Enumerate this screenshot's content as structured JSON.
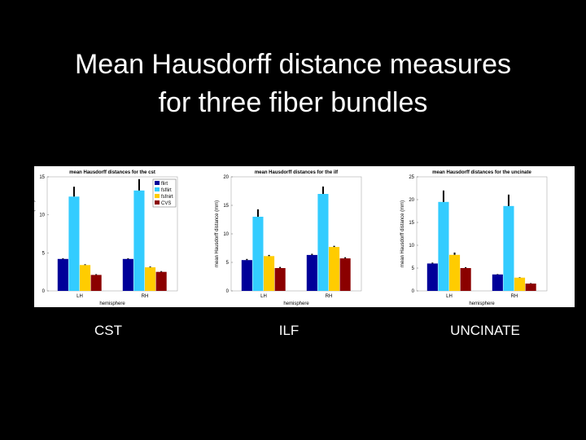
{
  "slide_title": [
    "Mean Hausdorff distance measures",
    "for three fiber bundles"
  ],
  "captions": [
    "CST",
    "ILF",
    "UNCINATE"
  ],
  "chart_data": [
    {
      "type": "bar",
      "title": "mean Hausdorff distances for the cst",
      "ylabel": "mean Hausdorff distance (mm)",
      "xlabel": "hemisphere",
      "categories": [
        "LH",
        "RH"
      ],
      "ylim": [
        0,
        15
      ],
      "yticks": [
        0,
        5,
        10,
        15
      ],
      "legend": "upper right",
      "series": [
        {
          "name": "flirt",
          "color": "#000099",
          "values": [
            4.2,
            4.2
          ],
          "errors": [
            0.1,
            0.1
          ]
        },
        {
          "name": "fsflirt",
          "color": "#33ccff",
          "values": [
            12.4,
            13.2
          ],
          "errors": [
            1.3,
            1.5
          ]
        },
        {
          "name": "fsfnirt",
          "color": "#ffcc00",
          "values": [
            3.4,
            3.1
          ],
          "errors": [
            0.1,
            0.1
          ]
        },
        {
          "name": "CVS",
          "color": "#8b0000",
          "values": [
            2.1,
            2.5
          ],
          "errors": [
            0.1,
            0.1
          ]
        }
      ]
    },
    {
      "type": "bar",
      "title": "mean Hausdorff distances for the ilf",
      "ylabel": "mean Hausdorff distance (mm)",
      "xlabel": "hemisphere",
      "categories": [
        "LH",
        "RH"
      ],
      "ylim": [
        0,
        20
      ],
      "yticks": [
        0,
        5,
        10,
        15,
        20
      ],
      "series": [
        {
          "color": "#000099",
          "values": [
            5.4,
            6.3
          ],
          "errors": [
            0.2,
            0.2
          ]
        },
        {
          "color": "#33ccff",
          "values": [
            13,
            17
          ],
          "errors": [
            1.3,
            1.3
          ]
        },
        {
          "color": "#ffcc00",
          "values": [
            6.1,
            7.7
          ],
          "errors": [
            0.2,
            0.2
          ]
        },
        {
          "color": "#8b0000",
          "values": [
            4,
            5.7
          ],
          "errors": [
            0.2,
            0.2
          ]
        }
      ]
    },
    {
      "type": "bar",
      "title": "mean Hausdorff distances for the uncinate",
      "ylabel": "mean Hausdorff distance (mm)",
      "xlabel": "hemisphere",
      "categories": [
        "LH",
        "RH"
      ],
      "ylim": [
        0,
        25
      ],
      "yticks": [
        0,
        5,
        10,
        15,
        20,
        25
      ],
      "series": [
        {
          "color": "#000099",
          "values": [
            6,
            3.6
          ],
          "errors": [
            0.2,
            0.1
          ]
        },
        {
          "color": "#33ccff",
          "values": [
            19.5,
            18.6
          ],
          "errors": [
            2.5,
            2.5
          ]
        },
        {
          "color": "#ffcc00",
          "values": [
            7.9,
            2.9
          ],
          "errors": [
            0.5,
            0.1
          ]
        },
        {
          "color": "#8b0000",
          "values": [
            5,
            1.6
          ],
          "errors": [
            0.2,
            0.1
          ]
        }
      ]
    }
  ]
}
